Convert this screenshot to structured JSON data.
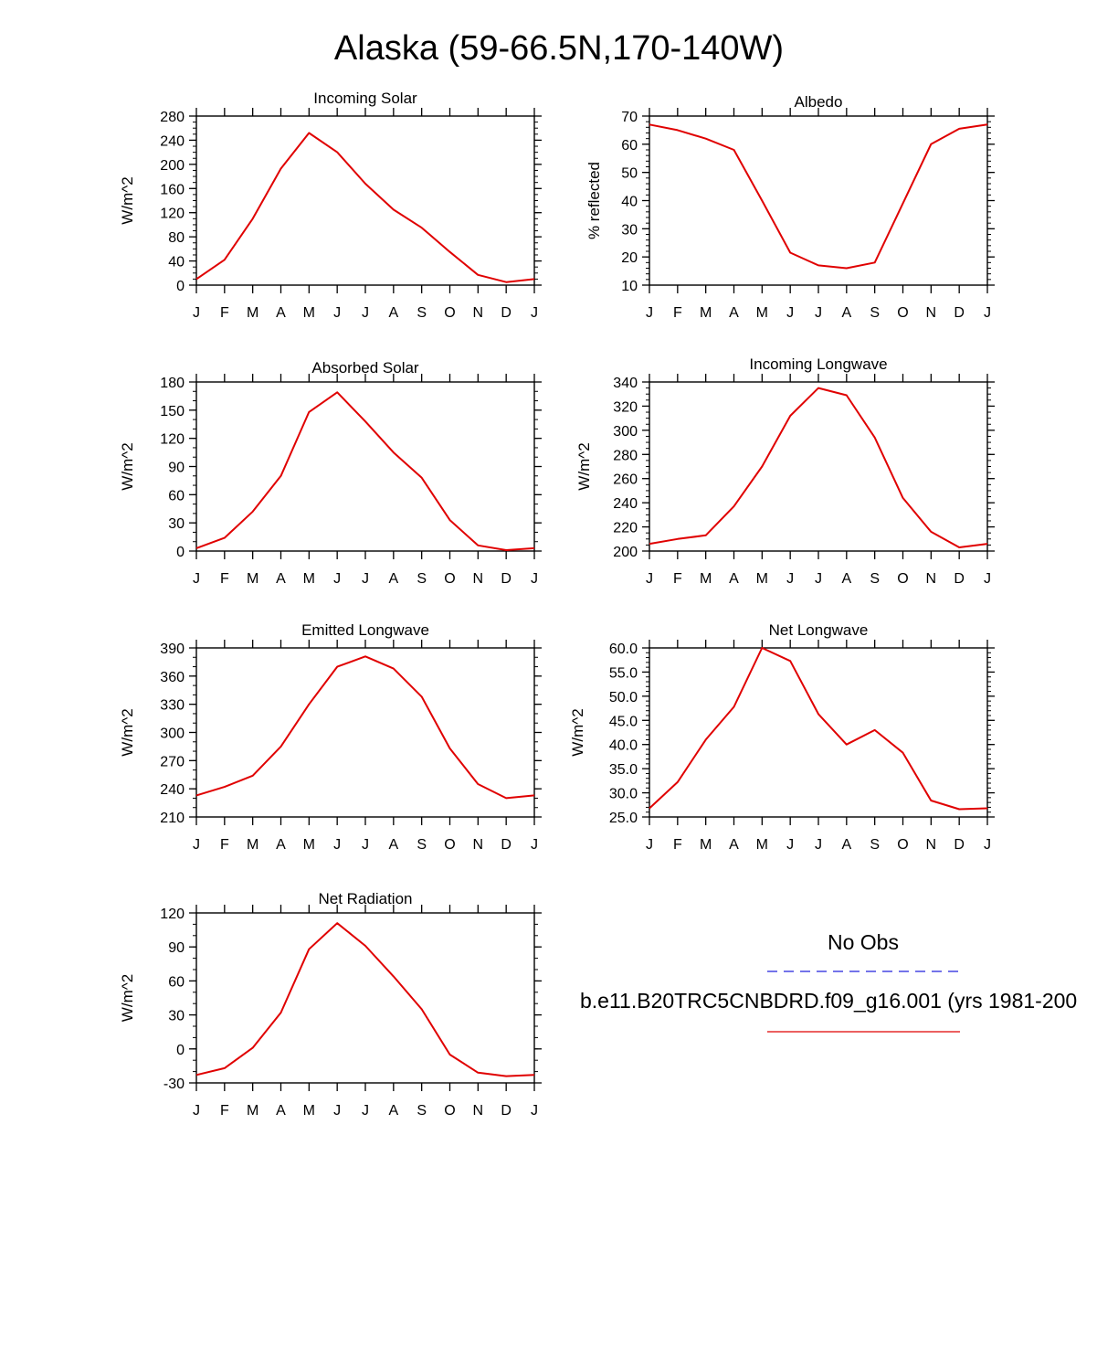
{
  "title": "Alaska (59-66.5N,170-140W)",
  "colors": {
    "model": "#e00000",
    "obs": "#2222dd",
    "axis": "#000000"
  },
  "legend": {
    "obs_label": "No Obs",
    "model_label": "b.e11.B20TRC5CNBDRD.f09_g16.001 (yrs 1981-200"
  },
  "chart_data": [
    {
      "type": "line",
      "title": "Incoming Solar",
      "xlabel": "",
      "ylabel": "W/m^2",
      "categories": [
        "J",
        "F",
        "M",
        "A",
        "M",
        "J",
        "J",
        "A",
        "S",
        "O",
        "N",
        "D",
        "J"
      ],
      "ylim": [
        0,
        280
      ],
      "yticks": [
        "0",
        "40",
        "80",
        "120",
        "160",
        "200",
        "240",
        "280"
      ],
      "yminor_step": 10,
      "series": [
        {
          "name": "b.e11.B20TRC5CNBDRD.f09_g16.001",
          "values": [
            10,
            42,
            110,
            193,
            252,
            220,
            168,
            125,
            95,
            55,
            17,
            5,
            10
          ]
        }
      ]
    },
    {
      "type": "line",
      "title": "Albedo",
      "xlabel": "",
      "ylabel": "% reflected",
      "categories": [
        "J",
        "F",
        "M",
        "A",
        "M",
        "J",
        "J",
        "A",
        "S",
        "O",
        "N",
        "D",
        "J"
      ],
      "ylim": [
        10,
        70
      ],
      "yticks": [
        "10",
        "20",
        "30",
        "40",
        "50",
        "60",
        "70"
      ],
      "yminor_step": 2,
      "series": [
        {
          "name": "b.e11.B20TRC5CNBDRD.f09_g16.001",
          "values": [
            67,
            65,
            62,
            58,
            40,
            21.5,
            17,
            16,
            18,
            39,
            60,
            65.5,
            67
          ]
        }
      ]
    },
    {
      "type": "line",
      "title": "Absorbed Solar",
      "xlabel": "",
      "ylabel": "W/m^2",
      "categories": [
        "J",
        "F",
        "M",
        "A",
        "M",
        "J",
        "J",
        "A",
        "S",
        "O",
        "N",
        "D",
        "J"
      ],
      "ylim": [
        0,
        180
      ],
      "yticks": [
        "0",
        "30",
        "60",
        "90",
        "120",
        "150",
        "180"
      ],
      "yminor_step": 10,
      "series": [
        {
          "name": "b.e11.B20TRC5CNBDRD.f09_g16.001",
          "values": [
            3,
            14,
            42,
            80,
            148,
            169,
            138,
            105,
            78,
            33,
            6,
            1,
            3
          ]
        }
      ]
    },
    {
      "type": "line",
      "title": "Incoming Longwave",
      "xlabel": "",
      "ylabel": "W/m^2",
      "categories": [
        "J",
        "F",
        "M",
        "A",
        "M",
        "J",
        "J",
        "A",
        "S",
        "O",
        "N",
        "D",
        "J"
      ],
      "ylim": [
        200,
        340
      ],
      "yticks": [
        "200",
        "220",
        "240",
        "260",
        "280",
        "300",
        "320",
        "340"
      ],
      "yminor_step": 5,
      "series": [
        {
          "name": "b.e11.B20TRC5CNBDRD.f09_g16.001",
          "values": [
            206,
            210,
            213,
            237,
            270,
            312,
            335,
            329,
            294,
            244,
            216,
            203,
            206
          ]
        }
      ]
    },
    {
      "type": "line",
      "title": "Emitted Longwave",
      "xlabel": "",
      "ylabel": "W/m^2",
      "categories": [
        "J",
        "F",
        "M",
        "A",
        "M",
        "J",
        "J",
        "A",
        "S",
        "O",
        "N",
        "D",
        "J"
      ],
      "ylim": [
        210,
        390
      ],
      "yticks": [
        "210",
        "240",
        "270",
        "300",
        "330",
        "360",
        "390"
      ],
      "yminor_step": 10,
      "series": [
        {
          "name": "b.e11.B20TRC5CNBDRD.f09_g16.001",
          "values": [
            233,
            242,
            254,
            285,
            330,
            370,
            381,
            368,
            338,
            283,
            245,
            230,
            233
          ]
        }
      ]
    },
    {
      "type": "line",
      "title": "Net Longwave",
      "xlabel": "",
      "ylabel": "W/m^2",
      "categories": [
        "J",
        "F",
        "M",
        "A",
        "M",
        "J",
        "J",
        "A",
        "S",
        "O",
        "N",
        "D",
        "J"
      ],
      "ylim": [
        25,
        60
      ],
      "yticks": [
        "25.0",
        "30.0",
        "35.0",
        "40.0",
        "45.0",
        "50.0",
        "55.0",
        "60.0"
      ],
      "yminor_step": 1,
      "series": [
        {
          "name": "b.e11.B20TRC5CNBDRD.f09_g16.001",
          "values": [
            26.8,
            32.2,
            41,
            47.8,
            60,
            57.3,
            46.3,
            40,
            43,
            38.3,
            28.4,
            26.6,
            26.8
          ]
        }
      ]
    },
    {
      "type": "line",
      "title": "Net Radiation",
      "xlabel": "",
      "ylabel": "W/m^2",
      "categories": [
        "J",
        "F",
        "M",
        "A",
        "M",
        "J",
        "J",
        "A",
        "S",
        "O",
        "N",
        "D",
        "J"
      ],
      "ylim": [
        -30,
        120
      ],
      "yticks": [
        "-30",
        "0",
        "30",
        "60",
        "90",
        "120"
      ],
      "yminor_step": 10,
      "series": [
        {
          "name": "b.e11.B20TRC5CNBDRD.f09_g16.001",
          "values": [
            -23,
            -17,
            1,
            32,
            88,
            111,
            91,
            64,
            35,
            -5,
            -21,
            -24,
            -23
          ]
        }
      ]
    }
  ]
}
